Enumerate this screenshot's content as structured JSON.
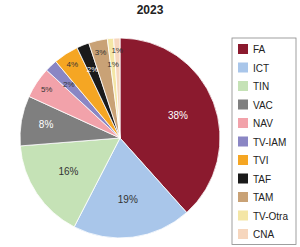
{
  "chart_data": {
    "type": "pie",
    "title": "2023",
    "categories": [
      "FA",
      "ICT",
      "TIN",
      "VAC",
      "NAV",
      "TV-IAM",
      "TVI",
      "TAF",
      "TAM",
      "TV-Otra",
      "CNA"
    ],
    "values": [
      38,
      19,
      16,
      8,
      5,
      2,
      4,
      2,
      3,
      1,
      1
    ],
    "value_labels": [
      "38%",
      "19%",
      "16%",
      "8%",
      "5%",
      "2%",
      "4%",
      "2%",
      "3%",
      "1%",
      "1%"
    ],
    "colors": [
      "#8b1a2e",
      "#a9c6ea",
      "#c5e2b6",
      "#7f7f7f",
      "#f2a2aa",
      "#8a86c4",
      "#f5a623",
      "#1a1a1a",
      "#c9a276",
      "#f4e6a6",
      "#f6d6bd"
    ],
    "legend": "right",
    "data_labels": true
  }
}
